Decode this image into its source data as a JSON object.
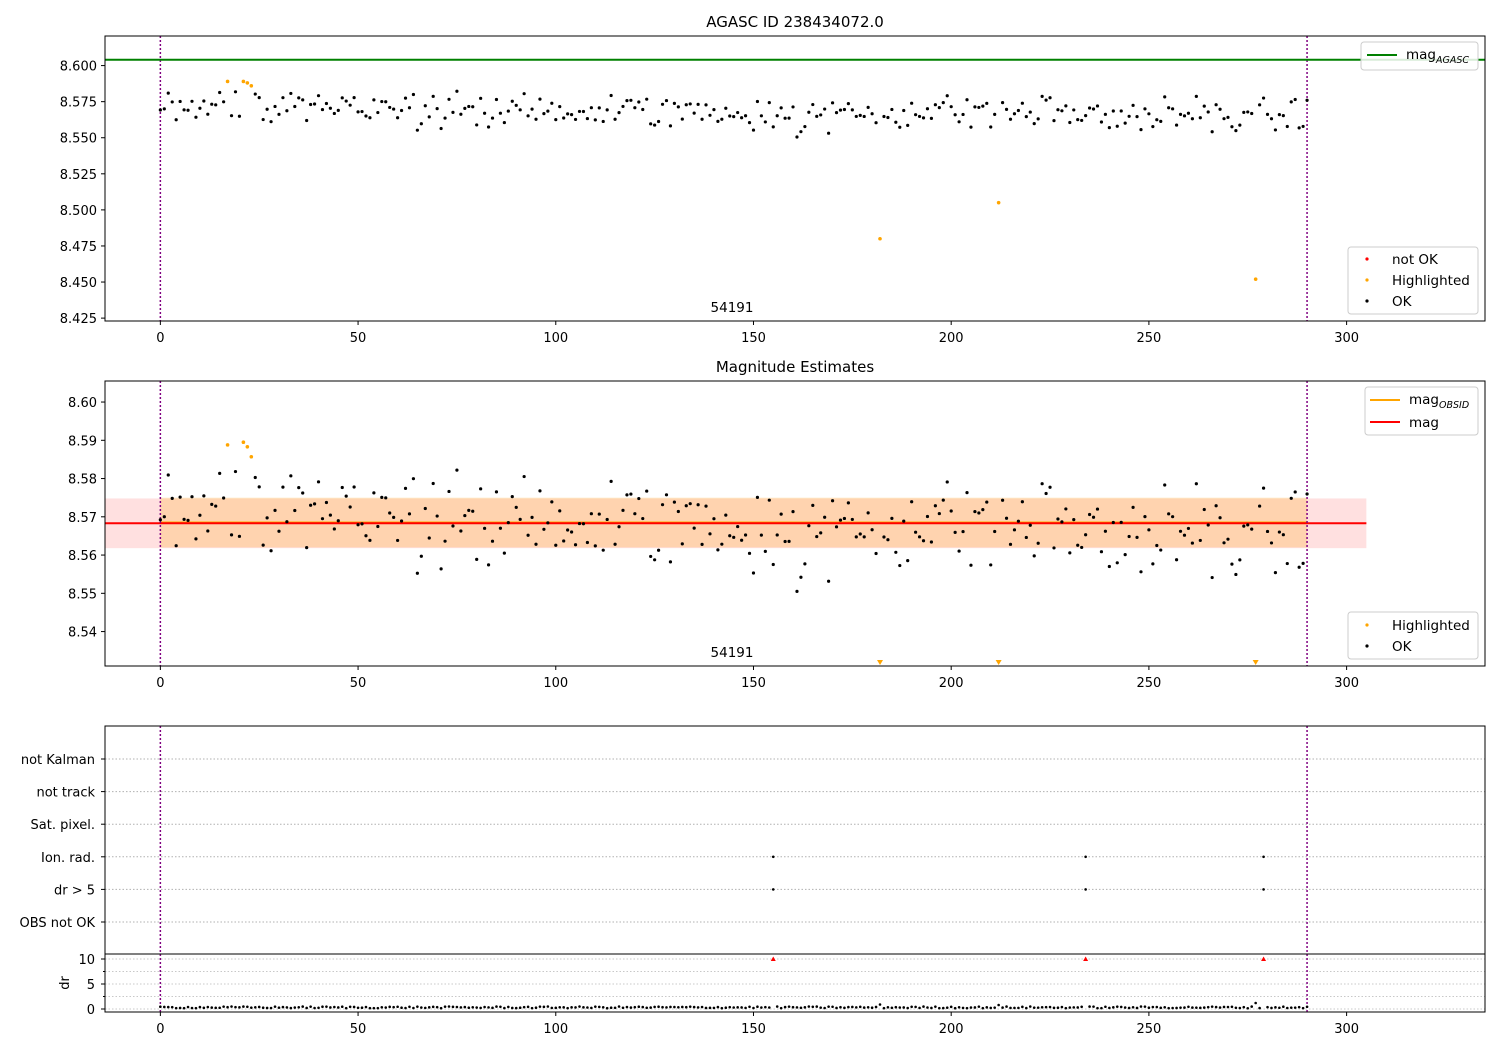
{
  "chart_data": [
    {
      "type": "scatter",
      "title": "AGASC ID 238434072.0",
      "xlim": [
        -14,
        335
      ],
      "ylim": [
        8.423,
        8.6205
      ],
      "xticks": [
        0,
        50,
        100,
        150,
        200,
        250,
        300
      ],
      "yticks": [
        "8.425",
        "8.450",
        "8.475",
        "8.500",
        "8.525",
        "8.550",
        "8.575",
        "8.600"
      ],
      "ytick_values": [
        8.425,
        8.45,
        8.475,
        8.5,
        8.525,
        8.55,
        8.575,
        8.6
      ],
      "vlines": [
        0,
        290
      ],
      "hline": {
        "name": "mag_AGASC",
        "label_main": "mag",
        "label_sub": "AGASC",
        "y": 8.604,
        "color": "#008000"
      },
      "annotation": {
        "text": "54191",
        "x": 145
      },
      "legends": [
        {
          "position": "top-right",
          "entries": [
            {
              "label": "mag",
              "sub": "AGASC",
              "kind": "line",
              "color": "#008000"
            }
          ]
        },
        {
          "position": "lower-right",
          "entries": [
            {
              "label": "not OK",
              "kind": "dot",
              "color": "#ff0000"
            },
            {
              "label": "Highlighted",
              "kind": "dot",
              "color": "#ffa500"
            },
            {
              "label": "OK",
              "kind": "dot",
              "color": "#000000"
            }
          ]
        }
      ],
      "series": [
        {
          "name": "Highlighted",
          "color": "#ffa500",
          "points": [
            [
              17,
              8.589
            ],
            [
              21,
              8.589
            ],
            [
              22,
              8.588
            ],
            [
              23,
              8.586
            ],
            [
              182,
              8.48
            ],
            [
              212,
              8.505
            ],
            [
              277,
              8.452
            ]
          ]
        }
      ]
    },
    {
      "type": "scatter",
      "title": "Magnitude Estimates",
      "xlim": [
        -14,
        335
      ],
      "ylim": [
        8.531,
        8.6055
      ],
      "xticks": [
        0,
        50,
        100,
        150,
        200,
        250,
        300
      ],
      "yticks": [
        "8.54",
        "8.55",
        "8.56",
        "8.57",
        "8.58",
        "8.59",
        "8.60"
      ],
      "ytick_values": [
        8.54,
        8.55,
        8.56,
        8.57,
        8.58,
        8.59,
        8.6
      ],
      "vlines": [
        0,
        290
      ],
      "mag": {
        "value": 8.5683,
        "color": "#ff0000",
        "band": [
          8.5618,
          8.5748
        ]
      },
      "mag_obsid": {
        "value": 8.5685,
        "color": "#ffa500",
        "band": [
          8.562,
          8.575
        ]
      },
      "band_x": [
        -14,
        305
      ],
      "annotation": {
        "text": "54191",
        "x": 145
      },
      "legends": [
        {
          "position": "top-right",
          "entries": [
            {
              "label": "mag",
              "sub": "OBSID",
              "kind": "line",
              "color": "#ffa500"
            },
            {
              "label": "mag",
              "kind": "line",
              "color": "#ff0000"
            }
          ]
        },
        {
          "position": "lower-right",
          "entries": [
            {
              "label": "Highlighted",
              "kind": "dot",
              "color": "#ffa500"
            },
            {
              "label": "OK",
              "kind": "dot",
              "color": "#000000"
            }
          ]
        }
      ],
      "highlighted": [
        [
          17,
          8.5888
        ],
        [
          21,
          8.5895
        ],
        [
          22,
          8.5883
        ],
        [
          23,
          8.5857
        ]
      ],
      "off_scale_markers": [
        182,
        212,
        277
      ]
    },
    {
      "type": "scatter",
      "title": "",
      "xlim": [
        -14,
        335
      ],
      "xticks": [
        0,
        50,
        100,
        150,
        200,
        250,
        300
      ],
      "vlines": [
        0,
        290
      ],
      "flag_rows": [
        "not Kalman",
        "not track",
        "Sat. pixel.",
        "Ion. rad.",
        "dr > 5",
        "OBS not OK"
      ],
      "flags": {
        "Ion. rad.": [
          155,
          234,
          279
        ],
        "dr > 5": [
          155,
          234,
          279
        ]
      },
      "dr": {
        "ylabel": "dr",
        "ylim": [
          -0.6,
          11
        ],
        "yticks": [
          "0",
          "5",
          "10"
        ],
        "ytick_values": [
          0,
          5,
          10
        ],
        "outliers": [
          155,
          234,
          279
        ],
        "outlier_color": "#ff0000",
        "bumps": [
          [
            182,
            0.9
          ],
          [
            212,
            0.8
          ],
          [
            277,
            1.2
          ]
        ]
      }
    }
  ]
}
